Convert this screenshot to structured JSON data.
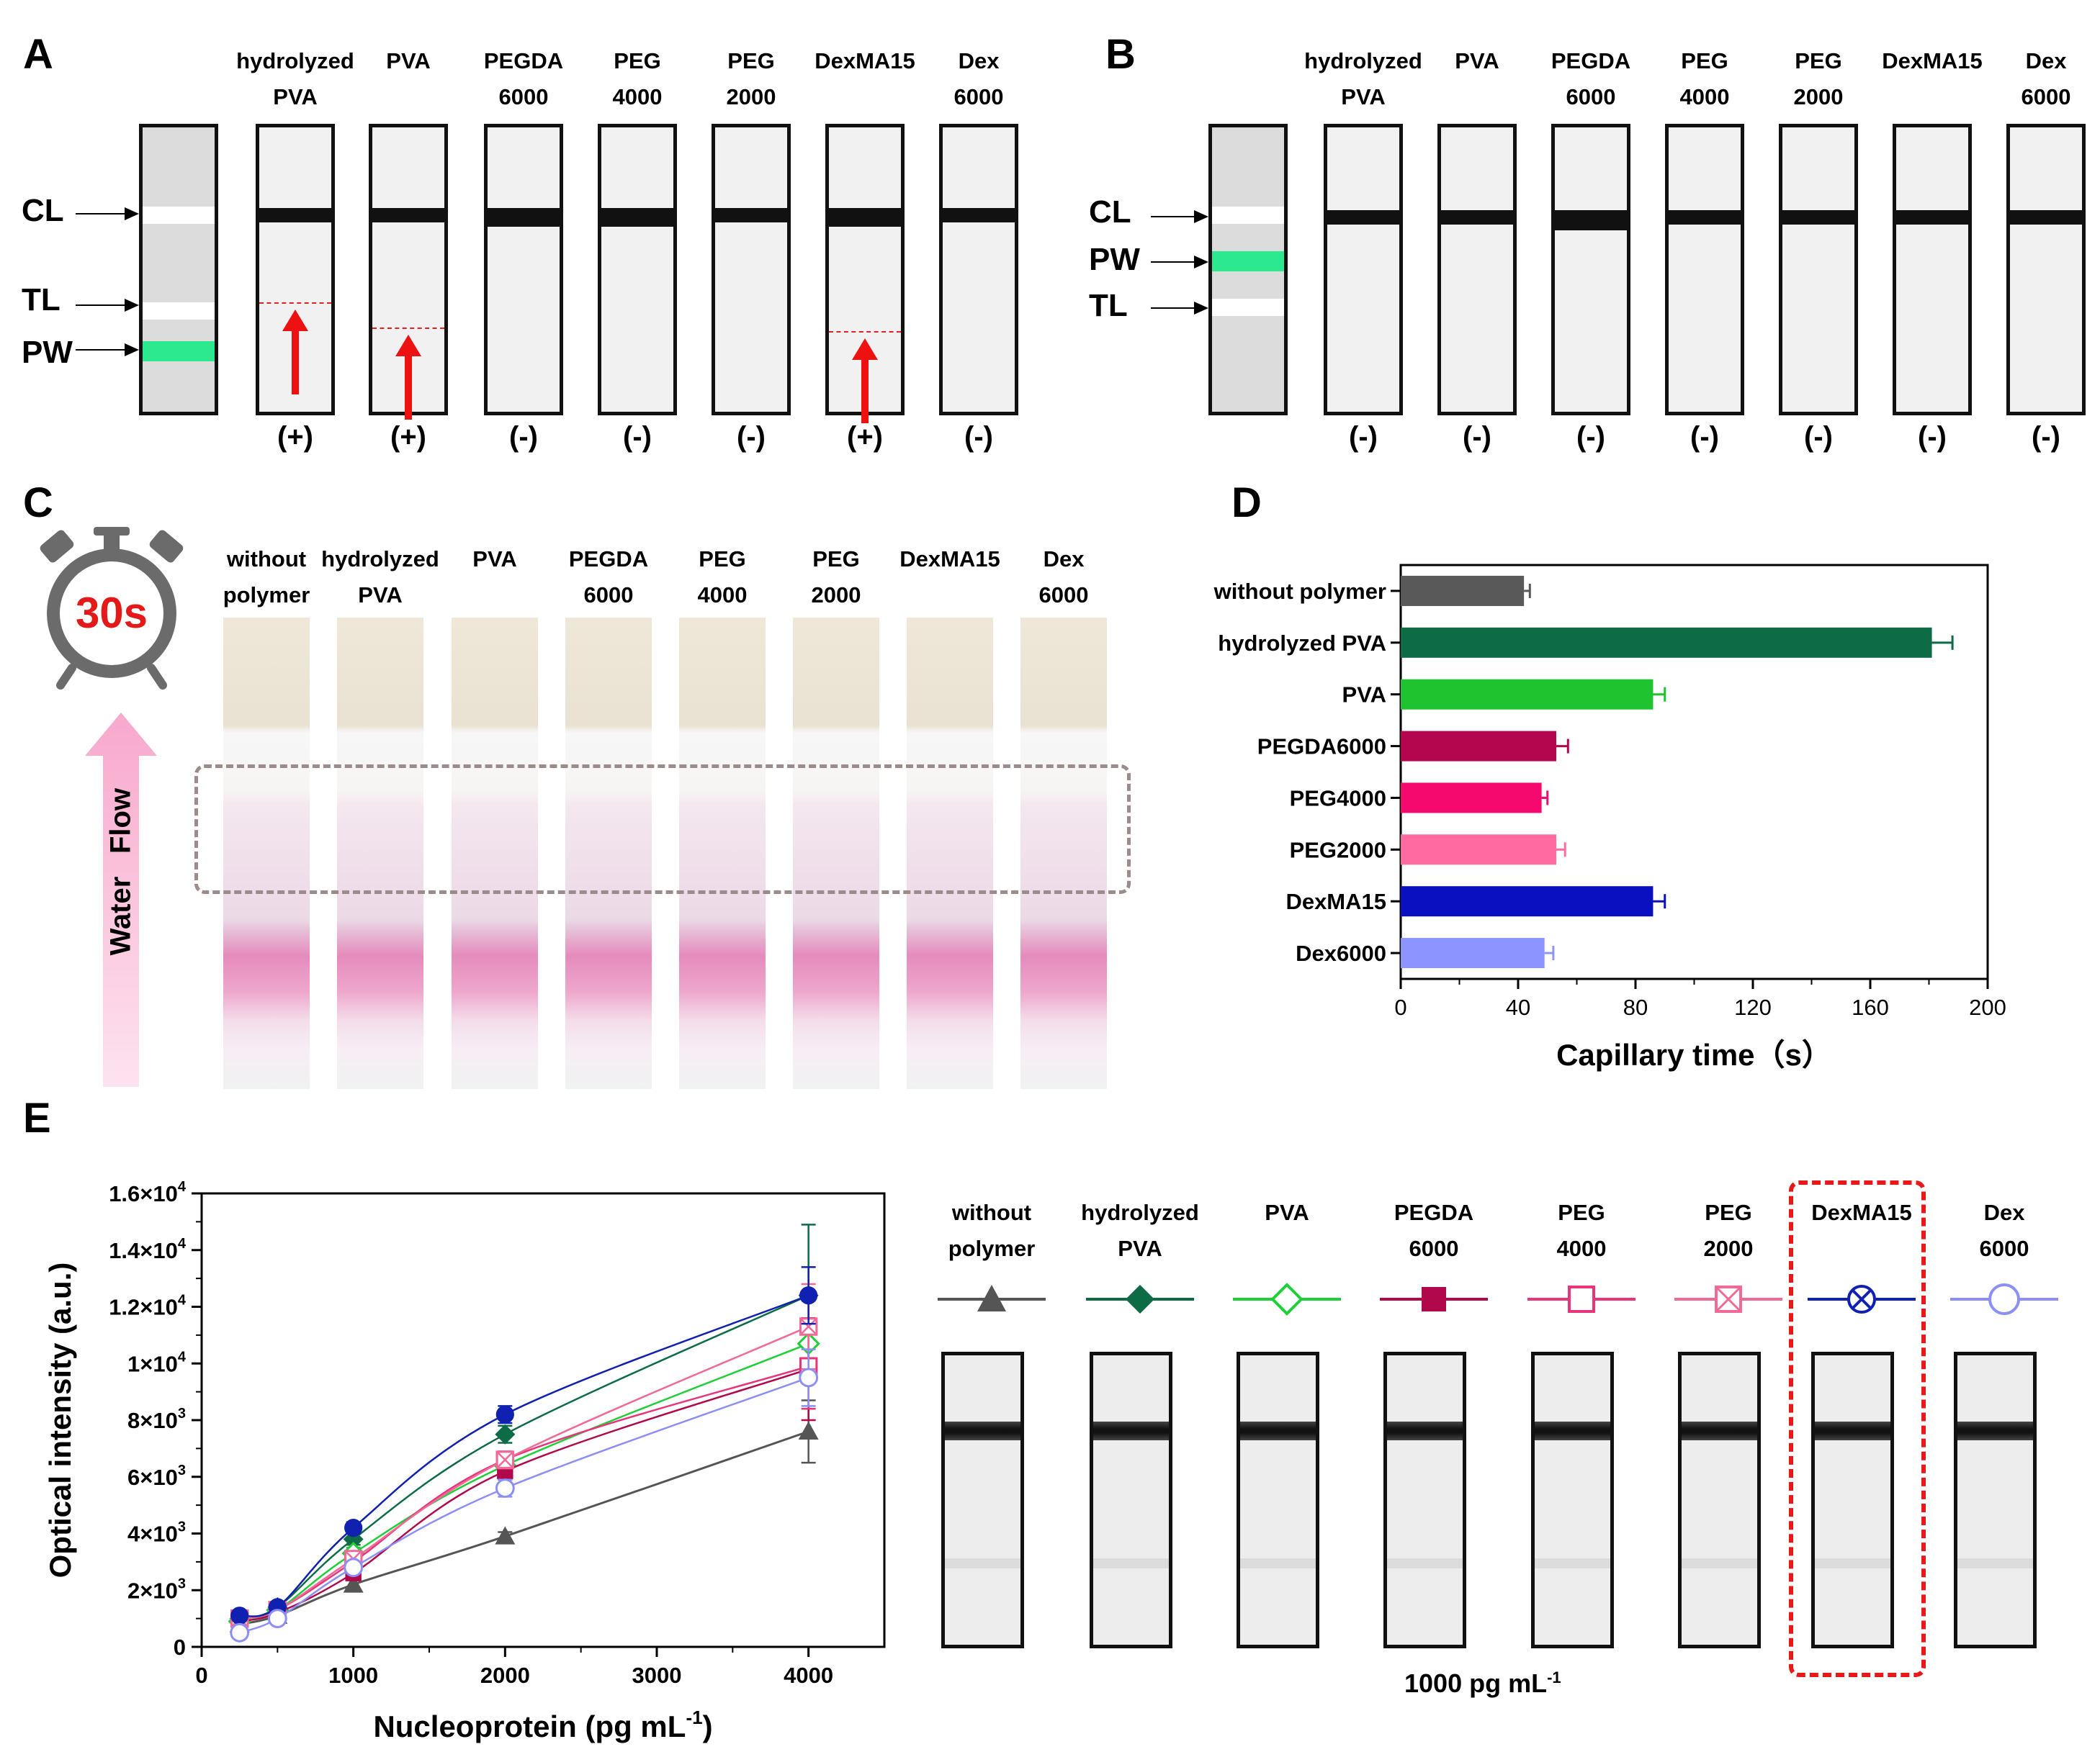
{
  "panel_a": {
    "letter": "A",
    "pointers": {
      "cl": "CL",
      "tl": "TL",
      "pw": "PW"
    },
    "strips": [
      {
        "label": "hydrolyzed\nPVA",
        "result": "(+)"
      },
      {
        "label": "PVA",
        "result": "(+)"
      },
      {
        "label": "PEGDA\n6000",
        "result": "(-)"
      },
      {
        "label": "PEG\n4000",
        "result": "(-)"
      },
      {
        "label": "PEG\n2000",
        "result": "(-)"
      },
      {
        "label": "DexMA15",
        "result": "(+)"
      },
      {
        "label": "Dex\n6000",
        "result": "(-)"
      }
    ],
    "colors": {
      "pad": "#2ce88e",
      "arrow": "#ee1111"
    }
  },
  "panel_b": {
    "letter": "B",
    "pointers": {
      "cl": "CL",
      "pw": "PW",
      "tl": "TL"
    },
    "strips": [
      {
        "label": "hydrolyzed\nPVA",
        "result": "(-)"
      },
      {
        "label": "PVA",
        "result": "(-)"
      },
      {
        "label": "PEGDA\n6000",
        "result": "(-)"
      },
      {
        "label": "PEG\n4000",
        "result": "(-)"
      },
      {
        "label": "PEG\n2000",
        "result": "(-)"
      },
      {
        "label": "DexMA15",
        "result": "(-)"
      },
      {
        "label": "Dex\n6000",
        "result": "(-)"
      }
    ]
  },
  "panel_c": {
    "letter": "C",
    "timer": "30s",
    "flow_words": [
      "Water",
      "Flow"
    ],
    "strips": [
      {
        "label": "without\npolymer"
      },
      {
        "label": "hydrolyzed\nPVA"
      },
      {
        "label": "PVA"
      },
      {
        "label": "PEGDA\n6000"
      },
      {
        "label": "PEG\n4000"
      },
      {
        "label": "PEG\n2000"
      },
      {
        "label": "DexMA15"
      },
      {
        "label": "Dex\n6000"
      }
    ]
  },
  "panel_e_strips": {
    "legend": [
      {
        "label": "without\npolymer",
        "marker": "triangle-icon",
        "color": "#555555"
      },
      {
        "label": "hydrolyzed\nPVA",
        "marker": "diamond-icon",
        "color": "#0d6b45"
      },
      {
        "label": "PVA",
        "marker": "diamond-open-icon",
        "color": "#1fcf3a"
      },
      {
        "label": "PEGDA\n6000",
        "marker": "square-icon",
        "color": "#b0084a"
      },
      {
        "label": "PEG\n4000",
        "marker": "square-open-icon",
        "color": "#e8347a"
      },
      {
        "label": "PEG\n2000",
        "marker": "square-cross-icon",
        "color": "#f06a98"
      },
      {
        "label": "DexMA15",
        "marker": "circle-cross-icon",
        "color": "#1020b0"
      },
      {
        "label": "Dex\n6000",
        "marker": "circle-open-icon",
        "color": "#8c8ff5"
      }
    ],
    "caption_main": "1000 pg mL",
    "caption_exp": "-1"
  },
  "chart_data": [
    {
      "type": "bar",
      "panel": "D",
      "orientation": "horizontal",
      "categories": [
        "without polymer",
        "hydrolyzed PVA",
        "PVA",
        "PEGDA6000",
        "PEG4000",
        "PEG2000",
        "DexMA15",
        "Dex6000"
      ],
      "values": [
        42,
        181,
        86,
        53,
        48,
        53,
        86,
        49
      ],
      "errors": [
        2,
        7,
        4,
        4,
        2,
        3,
        4,
        3
      ],
      "colors": [
        "#595959",
        "#0d6b45",
        "#1fc22f",
        "#b3064f",
        "#f5096e",
        "#ff6ba0",
        "#0a10c0",
        "#8c94ff"
      ],
      "xlabel": "Capillary time（s）",
      "xlim": [
        0,
        200
      ],
      "xticks": [
        0,
        40,
        80,
        120,
        160,
        200
      ]
    },
    {
      "type": "line",
      "panel": "E",
      "xlabel": "Nucleoprotein (pg mL",
      "xlabel_exp": "-1",
      "xlabel_end": ")",
      "ylabel": "Optical intensity (a.u.)",
      "xlim": [
        0,
        4500
      ],
      "ylim": [
        0,
        16000
      ],
      "xticks": [
        0,
        1000,
        2000,
        3000,
        4000
      ],
      "yticks": [
        {
          "v": 0,
          "label": "0"
        },
        {
          "v": 2000,
          "label": "2×10",
          "exp": "3"
        },
        {
          "v": 4000,
          "label": "4×10",
          "exp": "3"
        },
        {
          "v": 6000,
          "label": "6×10",
          "exp": "3"
        },
        {
          "v": 8000,
          "label": "8×10",
          "exp": "3"
        },
        {
          "v": 10000,
          "label": "1×10",
          "exp": "4"
        },
        {
          "v": 12000,
          "label": "1.2×10",
          "exp": "4"
        },
        {
          "v": 14000,
          "label": "1.4×10",
          "exp": "4"
        },
        {
          "v": 16000,
          "label": "1.6×10",
          "exp": "4"
        }
      ],
      "x": [
        250,
        500,
        1000,
        2000,
        4000
      ],
      "series": [
        {
          "name": "without polymer",
          "marker": "triangle",
          "color": "#555555",
          "values": [
            800,
            1100,
            2200,
            3900,
            7600
          ],
          "errors": [
            150,
            150,
            150,
            150,
            1100
          ]
        },
        {
          "name": "hydrolyzed PVA",
          "marker": "diamond",
          "color": "#0d6b45",
          "values": [
            1000,
            1400,
            3800,
            7500,
            12400
          ],
          "errors": [
            150,
            150,
            200,
            300,
            2500
          ]
        },
        {
          "name": "PVA",
          "marker": "diamond-open",
          "color": "#1fcf3a",
          "values": [
            900,
            1300,
            3300,
            6400,
            10700
          ],
          "errors": [
            150,
            150,
            200,
            300,
            800
          ]
        },
        {
          "name": "PEGDA6000",
          "marker": "square",
          "color": "#b0084a",
          "values": [
            900,
            1200,
            2600,
            6200,
            9800
          ],
          "errors": [
            150,
            150,
            200,
            300,
            1800
          ]
        },
        {
          "name": "PEG4000",
          "marker": "square-open",
          "color": "#e8347a",
          "values": [
            1000,
            1300,
            3000,
            6600,
            9900
          ],
          "errors": [
            150,
            150,
            200,
            300,
            1500
          ]
        },
        {
          "name": "PEG2000",
          "marker": "square-cross",
          "color": "#f06a98",
          "values": [
            1000,
            1300,
            3100,
            6600,
            11300
          ],
          "errors": [
            150,
            150,
            200,
            300,
            1500
          ]
        },
        {
          "name": "DexMA15",
          "marker": "circle-cross",
          "color": "#1020b0",
          "values": [
            1100,
            1400,
            4200,
            8200,
            12400
          ],
          "errors": [
            150,
            150,
            200,
            300,
            1000
          ]
        },
        {
          "name": "Dex6000",
          "marker": "circle-open",
          "color": "#8c8ff5",
          "values": [
            500,
            1000,
            2800,
            5600,
            9500
          ],
          "errors": [
            150,
            150,
            200,
            300,
            1000
          ]
        }
      ]
    }
  ],
  "panel_d_letter": "D",
  "panel_e_letter": "E"
}
